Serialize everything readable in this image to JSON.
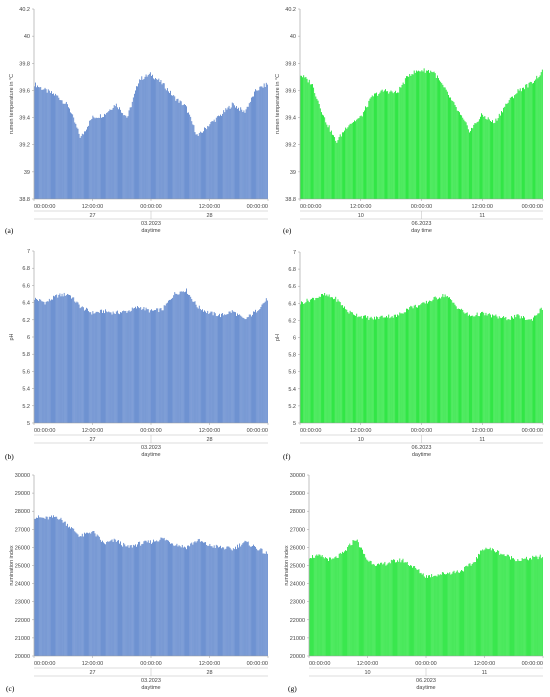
{
  "panels": [
    {
      "label": "(a)",
      "x_ticks": [
        "00:00:00",
        "12:00:00",
        "00:00:00",
        "12:00:00",
        "00:00:00"
      ],
      "days": [
        "27",
        "28"
      ],
      "month": "03.2023",
      "xlabel": "daytime"
    },
    {
      "label": "(b)",
      "x_ticks": [
        "00:00:00",
        "12:00:00",
        "00:00:00",
        "12:00:00",
        "00:00:00"
      ],
      "days": [
        "27",
        "28"
      ],
      "month": "03.2023",
      "xlabel": "daytime"
    },
    {
      "label": "(c)",
      "x_ticks": [
        "00:00:00",
        "12:00:00",
        "00:00:00",
        "12:00:00",
        "00:00:00"
      ],
      "days": [
        "27",
        "28"
      ],
      "month": "03.2023",
      "xlabel": "daytime"
    },
    {
      "label": "(e)",
      "x_ticks": [
        "00:00:00",
        "12:00:00",
        "00:00:00",
        "12:00:00",
        "00:00:00"
      ],
      "days": [
        "10",
        "11"
      ],
      "month": "06.2023",
      "xlabel": "day time"
    },
    {
      "label": "(f)",
      "x_ticks": [
        "00:00:00",
        "12:00:00",
        "00:00:00",
        "12:00:00",
        "00:00:00"
      ],
      "days": [
        "10",
        "11"
      ],
      "month": "06.2023",
      "xlabel": "daytime"
    },
    {
      "label": "(g)",
      "x_ticks": [
        "00:00:00",
        "12:00:00",
        "00:00:00",
        "12:00:00",
        "00:00:00"
      ],
      "days": [
        "10",
        "11"
      ],
      "month": "06.2023",
      "xlabel": "daytime"
    }
  ],
  "colors": {
    "blue": "#4472c4",
    "green": "#00e01a"
  },
  "chart_data": [
    {
      "type": "area",
      "id": "a",
      "ylabel": "rumen temperature in °C",
      "ylim": [
        38.8,
        40.2
      ],
      "y_ticks": [
        "40.2",
        "40",
        "39.8",
        "39.6",
        "39.4",
        "39.2",
        "39",
        "38.8"
      ],
      "grid": false,
      "x": [
        0,
        0.1,
        0.2,
        0.3,
        0.4,
        0.5,
        0.6,
        0.7,
        0.8,
        0.9,
        1.0,
        1.1,
        1.2,
        1.3,
        1.4,
        1.5,
        1.6,
        1.7,
        1.8,
        1.9,
        2.0
      ],
      "values": [
        39.65,
        39.6,
        39.56,
        39.48,
        39.25,
        39.4,
        39.42,
        39.5,
        39.4,
        39.68,
        39.72,
        39.65,
        39.55,
        39.48,
        39.26,
        39.35,
        39.42,
        39.5,
        39.44,
        39.6,
        39.65
      ]
    },
    {
      "type": "area",
      "id": "b",
      "ylabel": "pH",
      "ylim": [
        5,
        7
      ],
      "y_ticks": [
        "7",
        "6.8",
        "6.6",
        "6.4",
        "6.2",
        "6",
        "5.8",
        "5.6",
        "5.4",
        "5.2",
        "5"
      ],
      "grid": false,
      "x": [
        0,
        0.1,
        0.2,
        0.3,
        0.4,
        0.5,
        0.6,
        0.7,
        0.8,
        0.9,
        1.0,
        1.1,
        1.2,
        1.3,
        1.4,
        1.5,
        1.6,
        1.7,
        1.8,
        1.9,
        2.0
      ],
      "values": [
        6.45,
        6.4,
        6.48,
        6.5,
        6.35,
        6.28,
        6.3,
        6.28,
        6.3,
        6.35,
        6.3,
        6.32,
        6.5,
        6.55,
        6.35,
        6.28,
        6.25,
        6.3,
        6.2,
        6.3,
        6.45
      ]
    },
    {
      "type": "area",
      "id": "c",
      "ylabel": "rumination index",
      "ylim": [
        20000,
        30000
      ],
      "y_ticks": [
        "30000",
        "29000",
        "28000",
        "27000",
        "26000",
        "25000",
        "24000",
        "23000",
        "22000",
        "21000",
        "20000"
      ],
      "grid": false,
      "x": [
        0,
        0.1,
        0.2,
        0.3,
        0.4,
        0.5,
        0.6,
        0.7,
        0.8,
        0.9,
        1.0,
        1.1,
        1.2,
        1.3,
        1.4,
        1.5,
        1.6,
        1.7,
        1.8,
        1.9,
        2.0
      ],
      "values": [
        27700,
        27600,
        27700,
        27200,
        26600,
        26900,
        26200,
        26400,
        26000,
        26200,
        26300,
        26500,
        26200,
        26000,
        26400,
        26100,
        26000,
        25900,
        26300,
        26000,
        25600
      ]
    },
    {
      "type": "area",
      "id": "e",
      "ylabel": "rumen temperature in °C",
      "ylim": [
        38.8,
        40.2
      ],
      "y_ticks": [
        "40.2",
        "40",
        "39.8",
        "39.6",
        "39.4",
        "39.2",
        "39",
        "38.8"
      ],
      "grid": false,
      "x": [
        0,
        0.1,
        0.2,
        0.3,
        0.4,
        0.5,
        0.6,
        0.7,
        0.8,
        0.9,
        1.0,
        1.1,
        1.2,
        1.3,
        1.4,
        1.5,
        1.6,
        1.7,
        1.8,
        1.9,
        2.0
      ],
      "values": [
        39.72,
        39.65,
        39.4,
        39.22,
        39.35,
        39.4,
        39.56,
        39.6,
        39.58,
        39.72,
        39.75,
        39.74,
        39.6,
        39.45,
        39.3,
        39.42,
        39.36,
        39.5,
        39.6,
        39.65,
        39.74
      ]
    },
    {
      "type": "area",
      "id": "f",
      "ylabel": "pH",
      "ylim": [
        5,
        7
      ],
      "y_ticks": [
        "7",
        "6.8",
        "6.6",
        "6.4",
        "6.2",
        "6",
        "5.8",
        "5.6",
        "5.4",
        "5.2",
        "5"
      ],
      "grid": false,
      "x": [
        0,
        0.1,
        0.2,
        0.3,
        0.4,
        0.5,
        0.6,
        0.7,
        0.8,
        0.9,
        1.0,
        1.1,
        1.2,
        1.3,
        1.4,
        1.5,
        1.6,
        1.7,
        1.8,
        1.9,
        2.0
      ],
      "values": [
        6.4,
        6.45,
        6.5,
        6.45,
        6.3,
        6.25,
        6.22,
        6.25,
        6.25,
        6.35,
        6.38,
        6.45,
        6.5,
        6.35,
        6.25,
        6.28,
        6.25,
        6.22,
        6.25,
        6.2,
        6.35
      ]
    },
    {
      "type": "area",
      "id": "g",
      "ylabel": "rumination index",
      "ylim": [
        20000,
        30000
      ],
      "y_ticks": [
        "30000",
        "29000",
        "28000",
        "27000",
        "26000",
        "25000",
        "24000",
        "23000",
        "22000",
        "21000",
        "20000"
      ],
      "grid": false,
      "x": [
        0,
        0.1,
        0.2,
        0.3,
        0.4,
        0.5,
        0.6,
        0.7,
        0.8,
        0.9,
        1.0,
        1.1,
        1.2,
        1.3,
        1.4,
        1.5,
        1.6,
        1.7,
        1.8,
        1.9,
        2.0
      ],
      "values": [
        25500,
        25500,
        25300,
        25700,
        26500,
        25300,
        25000,
        25200,
        25300,
        24900,
        24400,
        24500,
        24600,
        24700,
        25100,
        26000,
        25800,
        25500,
        25300,
        25400,
        25500
      ]
    }
  ]
}
